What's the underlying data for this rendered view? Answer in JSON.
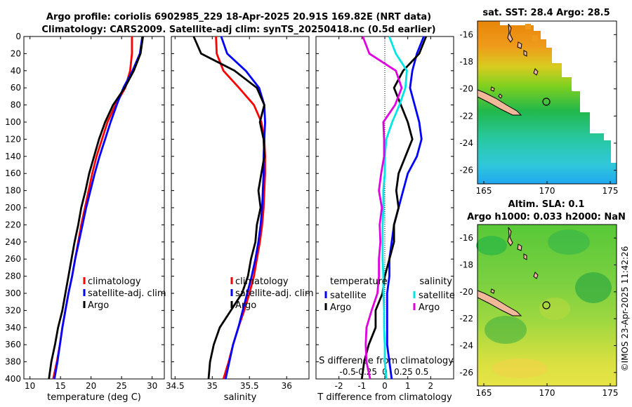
{
  "header": {
    "title_line1": "Argo profile: coriolis 6902985_229 18-Apr-2025 20.91S 169.82E (NRT data)",
    "title_line2": "Climatology: CARS2009. Satellite-adj clim: synTS_20250418.nc (0.5d earlier)"
  },
  "colors": {
    "climatology": "#ff0000",
    "satellite": "#0000ff",
    "argo": "#000000",
    "sat_salinity": "#00e5e5",
    "argo_salinity": "#e000e0"
  },
  "depth_ticks": [
    "0",
    "20",
    "40",
    "60",
    "80",
    "100",
    "120",
    "140",
    "160",
    "180",
    "200",
    "220",
    "240",
    "260",
    "280",
    "300",
    "320",
    "340",
    "360",
    "380",
    "400"
  ],
  "chart_data": [
    {
      "type": "line",
      "title": "",
      "xlabel": "temperature (deg C)",
      "ylabel": "depth",
      "xlim": [
        9,
        32
      ],
      "ylim": [
        400,
        0
      ],
      "x_ticks": [
        "10",
        "15",
        "20",
        "25",
        "30"
      ],
      "legend": [
        "climatology",
        "satellite-adj. clim",
        "Argo"
      ],
      "series": [
        {
          "name": "climatology",
          "depth": [
            0,
            20,
            40,
            60,
            80,
            100,
            120,
            140,
            160,
            180,
            200,
            220,
            240,
            260,
            280,
            300,
            320,
            340,
            360,
            380,
            400
          ],
          "values": [
            26.7,
            26.7,
            26.4,
            25.6,
            24.0,
            22.7,
            21.8,
            20.9,
            20.2,
            19.6,
            19.0,
            18.4,
            17.9,
            17.4,
            16.9,
            16.3,
            15.8,
            15.3,
            14.9,
            14.4,
            13.8
          ]
        },
        {
          "name": "satellite-adj. clim",
          "depth": [
            0,
            20,
            40,
            60,
            80,
            100,
            120,
            140,
            160,
            180,
            200,
            220,
            240,
            260,
            280,
            300,
            320,
            340,
            360,
            380,
            400
          ],
          "values": [
            28.4,
            28.0,
            26.8,
            25.3,
            24.2,
            23.2,
            22.3,
            21.4,
            20.6,
            19.9,
            19.2,
            18.6,
            18.0,
            17.4,
            16.9,
            16.3,
            15.8,
            15.3,
            14.9,
            14.5,
            14.0
          ]
        },
        {
          "name": "Argo",
          "depth": [
            0,
            20,
            40,
            60,
            80,
            100,
            120,
            140,
            160,
            180,
            200,
            220,
            240,
            260,
            280,
            300,
            320,
            340,
            360,
            380,
            400
          ],
          "values": [
            28.5,
            28.1,
            27.0,
            25.5,
            23.6,
            22.3,
            21.3,
            20.5,
            19.7,
            19.1,
            18.4,
            17.9,
            17.3,
            16.8,
            16.3,
            15.8,
            15.3,
            14.6,
            14.1,
            13.5,
            13.1
          ]
        }
      ]
    },
    {
      "type": "line",
      "title": "",
      "xlabel": "salinity",
      "ylabel": "depth",
      "xlim": [
        34.45,
        36.3
      ],
      "ylim": [
        400,
        0
      ],
      "x_ticks": [
        "34.5",
        "35",
        "35.5",
        "36"
      ],
      "legend": [
        "climatology",
        "satellite-adj. clim",
        "Argo"
      ],
      "series": [
        {
          "name": "climatology",
          "depth": [
            0,
            20,
            40,
            60,
            80,
            100,
            120,
            140,
            160,
            180,
            200,
            220,
            240,
            260,
            280,
            300,
            320,
            340,
            360,
            380,
            400
          ],
          "values": [
            35.05,
            35.06,
            35.15,
            35.36,
            35.56,
            35.66,
            35.7,
            35.71,
            35.71,
            35.7,
            35.69,
            35.67,
            35.64,
            35.6,
            35.56,
            35.5,
            35.43,
            35.35,
            35.28,
            35.22,
            35.15
          ]
        },
        {
          "name": "satellite-adj. clim",
          "depth": [
            0,
            20,
            40,
            60,
            80,
            100,
            120,
            140,
            160,
            180,
            200,
            220,
            240,
            260,
            280,
            300,
            320,
            340,
            360,
            380,
            400
          ],
          "values": [
            35.12,
            35.2,
            35.45,
            35.63,
            35.7,
            35.71,
            35.7,
            35.69,
            35.69,
            35.68,
            35.67,
            35.65,
            35.62,
            35.58,
            35.53,
            35.47,
            35.41,
            35.35,
            35.28,
            35.23,
            35.18
          ]
        },
        {
          "name": "Argo",
          "depth": [
            0,
            20,
            40,
            60,
            80,
            100,
            120,
            140,
            160,
            180,
            200,
            220,
            240,
            260,
            280,
            300,
            320,
            340,
            360,
            380,
            400
          ],
          "values": [
            34.75,
            34.85,
            35.3,
            35.6,
            35.7,
            35.64,
            35.69,
            35.7,
            35.66,
            35.62,
            35.65,
            35.6,
            35.58,
            35.52,
            35.48,
            35.4,
            35.25,
            35.1,
            35.02,
            34.97,
            34.95
          ]
        }
      ]
    },
    {
      "type": "line",
      "title": "",
      "xlabel": "T difference from climatology",
      "x2label": "S difference from climatology",
      "ylabel": "depth",
      "xlim": [
        -3,
        3
      ],
      "ylim": [
        400,
        0
      ],
      "x_ticks": [
        "-2",
        "-1",
        "0",
        "1",
        "2"
      ],
      "x2_ticks": [
        "-0.5",
        "-0.25",
        "0",
        "0.25",
        "0.5"
      ],
      "legend_left_title": "temperature",
      "legend_right_title": "salinity",
      "legend_left": [
        "satellite",
        "Argo"
      ],
      "legend_right": [
        "satellite",
        "Argo"
      ],
      "series": [
        {
          "name": "satellite",
          "variable": "temperature",
          "depth": [
            0,
            20,
            40,
            60,
            80,
            100,
            120,
            140,
            160,
            180,
            200,
            220,
            240,
            260,
            280,
            300,
            320,
            340,
            360,
            380,
            400
          ],
          "values": [
            1.7,
            1.4,
            1.2,
            1.1,
            1.3,
            1.5,
            1.6,
            1.4,
            1.0,
            0.8,
            0.6,
            0.4,
            0.3,
            0.2,
            0.2,
            0.1,
            0.1,
            0.1,
            0.1,
            0.2,
            0.3
          ]
        },
        {
          "name": "Argo",
          "variable": "temperature",
          "depth": [
            0,
            20,
            40,
            60,
            80,
            100,
            120,
            140,
            160,
            180,
            200,
            220,
            240,
            260,
            280,
            300,
            320,
            340,
            360,
            380,
            400
          ],
          "values": [
            1.8,
            1.5,
            0.8,
            0.4,
            0.7,
            1.0,
            1.2,
            0.9,
            0.6,
            0.5,
            0.6,
            0.4,
            0.4,
            0.2,
            0.0,
            -0.1,
            -0.4,
            -0.4,
            -0.7,
            -0.9,
            -1.0
          ]
        },
        {
          "name": "satellite",
          "variable": "salinity",
          "depth": [
            0,
            20,
            40,
            60,
            80,
            100,
            120,
            140,
            160,
            180,
            200,
            220,
            240,
            260,
            280,
            300,
            320,
            340,
            360,
            380,
            400
          ],
          "values": [
            0.06,
            0.15,
            0.3,
            0.28,
            0.2,
            0.1,
            0.02,
            0.0,
            0.0,
            -0.02,
            -0.02,
            -0.03,
            -0.03,
            -0.03,
            -0.02,
            -0.02,
            -0.01,
            -0.01,
            0.0,
            0.0,
            0.02
          ]
        },
        {
          "name": "Argo",
          "variable": "salinity",
          "depth": [
            0,
            20,
            40,
            60,
            80,
            100,
            120,
            140,
            160,
            180,
            200,
            220,
            240,
            260,
            280,
            300,
            320,
            340,
            360,
            380,
            400
          ],
          "values": [
            -0.3,
            -0.21,
            0.15,
            0.23,
            0.14,
            -0.02,
            -0.01,
            -0.01,
            -0.05,
            -0.08,
            -0.04,
            -0.07,
            -0.06,
            -0.08,
            -0.08,
            -0.1,
            -0.18,
            -0.25,
            -0.26,
            -0.25,
            -0.2
          ]
        }
      ]
    },
    {
      "type": "heatmap",
      "title": "sat. SST: 28.4 Argo: 28.5",
      "x_ticks": [
        "165",
        "170",
        "175"
      ],
      "y_ticks": [
        "-16",
        "-18",
        "-20",
        "-22",
        "-24",
        "-26"
      ],
      "xlim": [
        164.5,
        175.5
      ],
      "ylim": [
        -27,
        -15
      ]
    },
    {
      "type": "heatmap",
      "title_line1": "Altim. SLA: 0.1",
      "title_line2": "Argo h1000: 0.033 h2000: NaN",
      "x_ticks": [
        "165",
        "170",
        "175"
      ],
      "y_ticks": [
        "-16",
        "-18",
        "-20",
        "-22",
        "-24",
        "-26"
      ],
      "xlim": [
        164.5,
        175.5
      ],
      "ylim": [
        -27,
        -15
      ]
    }
  ],
  "footer": {
    "stamp": "©IMOS 23-Apr-2025 11:42:26"
  }
}
